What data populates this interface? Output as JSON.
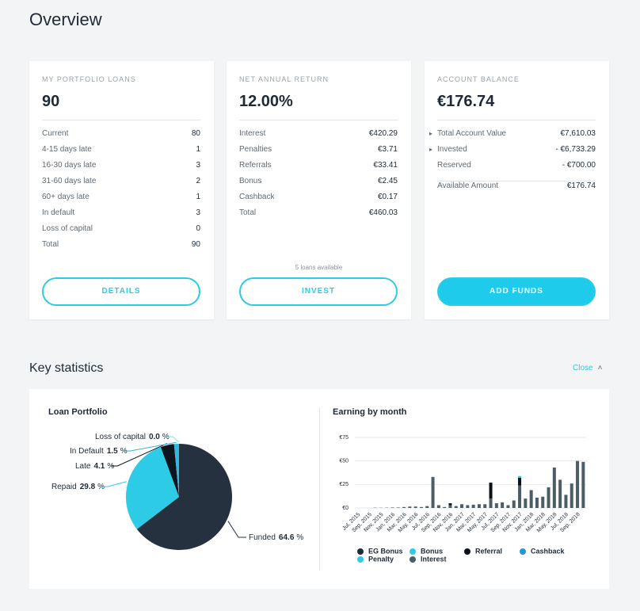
{
  "header": {
    "title": "Overview"
  },
  "cards": [
    {
      "label": "MY PORTFOLIO LOANS",
      "value": "90",
      "rows": [
        [
          "Current",
          "80"
        ],
        [
          "4-15 days late",
          "1"
        ],
        [
          "16-30 days late",
          "3"
        ],
        [
          "31-60 days late",
          "2"
        ],
        [
          "60+ days late",
          "1"
        ],
        [
          "In default",
          "3"
        ],
        [
          "Loss of capital",
          "0"
        ],
        [
          "Total",
          "90"
        ]
      ],
      "button": "DETAILS"
    },
    {
      "label": "NET ANNUAL RETURN",
      "value": "12.00%",
      "rows": [
        [
          "Interest",
          "€420.29"
        ],
        [
          "Penalties",
          "€3.71"
        ],
        [
          "Referrals",
          "€33.41"
        ],
        [
          "Bonus",
          "€2.45"
        ],
        [
          "Cashback",
          "€0.17"
        ],
        [
          "Total",
          "€460.03"
        ]
      ],
      "note": "5 loans available",
      "button": "INVEST"
    },
    {
      "label": "ACCOUNT BALANCE",
      "value": "€176.74",
      "rows": [
        [
          "Total Account Value",
          "€7,610.03"
        ],
        [
          "Invested",
          "- €6,733.29"
        ],
        [
          "Reserved",
          "- €700.00"
        ],
        [
          "Available Amount",
          "€176.74"
        ]
      ],
      "button": "ADD FUNDS"
    }
  ],
  "section": {
    "title": "Key statistics",
    "toggle": "Close"
  },
  "chart_data": [
    {
      "type": "pie",
      "title": "Loan Portfolio",
      "categories": [
        "Funded",
        "Repaid",
        "Late",
        "In Default",
        "Loss of capital"
      ],
      "values": [
        64.6,
        29.8,
        4.1,
        1.5,
        0.0
      ],
      "value_labels": [
        "64.6",
        "29.8",
        "4.1",
        "1.5",
        "0.0"
      ],
      "unit": "%",
      "colors": [
        "#263140",
        "#2ecbe6",
        "#0d161e",
        "#37b6dc",
        "#7fdcef"
      ]
    },
    {
      "type": "bar",
      "stacked": true,
      "title": "Earning by month",
      "categories": [
        "Jul, 2015",
        null,
        "Sep, 2015",
        null,
        "Nov, 2015",
        null,
        "Jan, 2016",
        null,
        "Mar, 2016",
        null,
        "May, 2016",
        null,
        "Jul, 2016",
        null,
        "Sep, 2016",
        null,
        "Nov, 2016",
        null,
        "Jan, 2017",
        null,
        "Mar, 2017",
        null,
        "May, 2017",
        null,
        "Jul, 2017",
        null,
        "Sep, 2017",
        null,
        "Nov, 2017",
        null,
        "Jan, 2018",
        null,
        "Mar, 2018",
        null,
        "May, 2018",
        null,
        "Jul, 2018",
        null,
        "Sep, 2018",
        null
      ],
      "ylim": [
        0,
        75
      ],
      "yticks": [
        {
          "value": 0,
          "label": "€0"
        },
        {
          "value": 25,
          "label": "€25"
        },
        {
          "value": 50,
          "label": "€50"
        },
        {
          "value": 75,
          "label": "€75"
        }
      ],
      "grid": true,
      "series": [
        {
          "name": "Interest",
          "color": "#4d5d66",
          "values": [
            0,
            0,
            0,
            0.3,
            0.2,
            0.3,
            0.5,
            0.5,
            1,
            1.5,
            1.5,
            1,
            2,
            33,
            3,
            1,
            3,
            2,
            4,
            3,
            3.5,
            4,
            4,
            10,
            5,
            6,
            3,
            8,
            24,
            10,
            19,
            11,
            12,
            22,
            43,
            30,
            14,
            26,
            50,
            49
          ]
        },
        {
          "name": "Penalty",
          "color": "#2ecbe6",
          "values": [
            0,
            0,
            0,
            0,
            0,
            0,
            0,
            0,
            0,
            0,
            0,
            0,
            0,
            0,
            0,
            0,
            0,
            0,
            0,
            0,
            0,
            0,
            0,
            0,
            0,
            0,
            0,
            0,
            0,
            0,
            0,
            0,
            0,
            0,
            0,
            0,
            0,
            0,
            0,
            0
          ]
        },
        {
          "name": "Cashback",
          "color": "#1e96e0",
          "values": [
            0,
            0,
            0,
            0,
            0,
            0,
            0,
            0,
            0,
            0,
            0,
            0,
            0,
            0,
            0,
            0,
            0,
            0,
            0,
            0,
            0,
            0,
            0,
            0,
            0,
            0,
            0,
            0,
            0,
            0,
            0,
            0,
            0,
            0,
            0,
            0,
            0,
            0,
            0,
            0
          ]
        },
        {
          "name": "Referral",
          "color": "#0b1117",
          "values": [
            0,
            0,
            0,
            0,
            0,
            0,
            0,
            0,
            0,
            0,
            0,
            0,
            0,
            0,
            0,
            0,
            2,
            0,
            0,
            0,
            0,
            0,
            0,
            17,
            0,
            0,
            0,
            0,
            8,
            0,
            0,
            0,
            0,
            0,
            0,
            0,
            0,
            0,
            0,
            0
          ]
        },
        {
          "name": "Bonus",
          "color": "#2ecbe6",
          "values": [
            0,
            0,
            0,
            0,
            0,
            0,
            0,
            0,
            0,
            0,
            0,
            0,
            0,
            0,
            0,
            0,
            0,
            0,
            0,
            0,
            0,
            0,
            0,
            0,
            0,
            0,
            0,
            0,
            2,
            0,
            0,
            0,
            0,
            0,
            0,
            0,
            0,
            0,
            0,
            0
          ]
        },
        {
          "name": "EG Bonus",
          "color": "#1f2d3a",
          "values": [
            0,
            0,
            0,
            0,
            0,
            0,
            0,
            0,
            0,
            0,
            0,
            0,
            0,
            0,
            0,
            0,
            0,
            0,
            0,
            0,
            0,
            0,
            0,
            0,
            0,
            0,
            0,
            0,
            0,
            0,
            0,
            0,
            0,
            0,
            0,
            0,
            0,
            0,
            0,
            0
          ]
        }
      ]
    }
  ]
}
